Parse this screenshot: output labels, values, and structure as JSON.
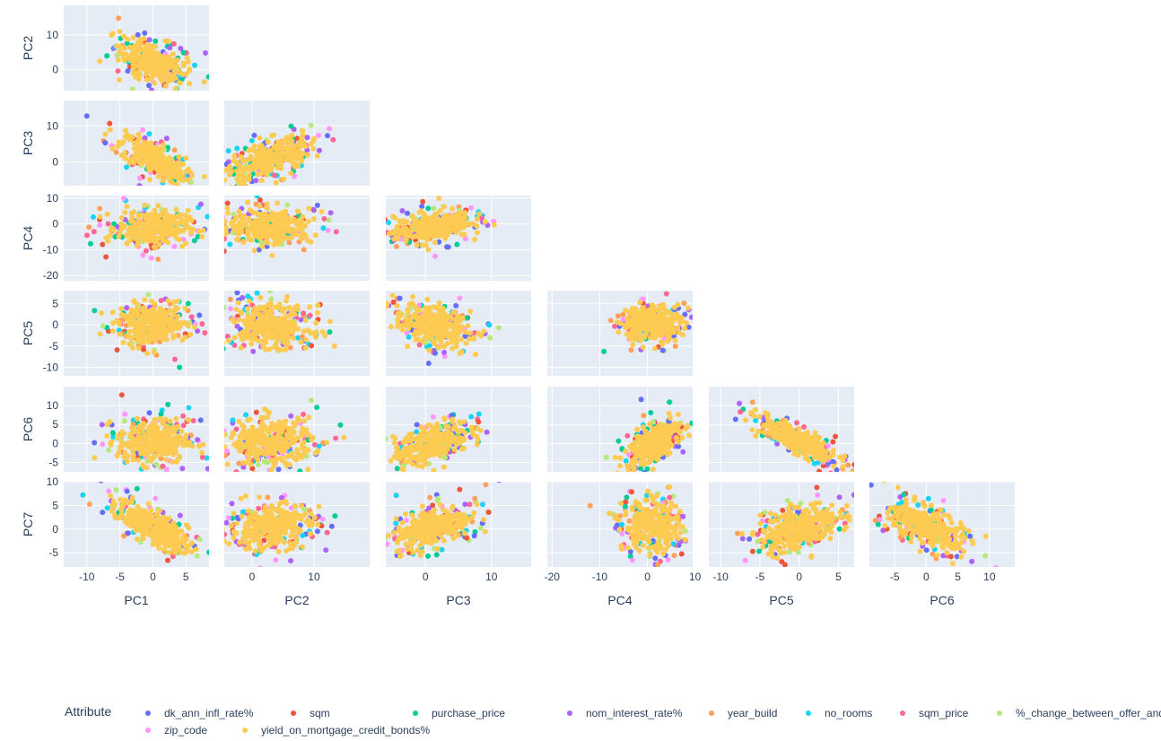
{
  "chart_data": {
    "type": "scatter",
    "subtype": "scatter-matrix-lower-triangle",
    "dimensions": [
      "PC1",
      "PC2",
      "PC3",
      "PC4",
      "PC5",
      "PC6",
      "PC7"
    ],
    "x_axis_labels": [
      "PC1",
      "PC2",
      "PC3",
      "PC4",
      "PC5",
      "PC6"
    ],
    "y_axis_labels": [
      "PC2",
      "PC3",
      "PC4",
      "PC5",
      "PC6",
      "PC7"
    ],
    "ranges": {
      "PC1": [
        -13.5,
        8.5
      ],
      "PC2": [
        -4.5,
        19
      ],
      "PC3": [
        -6,
        16
      ],
      "PC4": [
        -21,
        9.5
      ],
      "PC5": [
        -11.5,
        7
      ],
      "PC6": [
        -9,
        14
      ]
    },
    "y_ranges": {
      "PC2": [
        -6,
        18.5
      ],
      "PC3": [
        -6.5,
        17
      ],
      "PC4": [
        -22,
        11
      ],
      "PC5": [
        -12,
        8
      ],
      "PC6": [
        -7.5,
        15
      ],
      "PC7": [
        -8,
        10
      ]
    },
    "x_ticks": {
      "PC1": [
        -10,
        -5,
        0,
        5
      ],
      "PC2": [
        0,
        10
      ],
      "PC3": [
        0,
        10
      ],
      "PC4": [
        -20,
        -10,
        0,
        10
      ],
      "PC5": [
        -10,
        -5,
        0,
        5
      ],
      "PC6": [
        -5,
        0,
        5,
        10
      ]
    },
    "y_ticks": {
      "PC2": [
        0,
        10
      ],
      "PC3": [
        0,
        10
      ],
      "PC4": [
        -20,
        -10,
        0,
        10
      ],
      "PC5": [
        -10,
        -5,
        0,
        5
      ],
      "PC6": [
        -5,
        0,
        5,
        10
      ],
      "PC7": [
        -5,
        0,
        5,
        10
      ]
    },
    "legend_title": "Attribute",
    "legend_placement": "bottom",
    "series": [
      {
        "name": "dk_ann_infl_rate%",
        "color": "#636efa"
      },
      {
        "name": "sqm",
        "color": "#ef553b"
      },
      {
        "name": "purchase_price",
        "color": "#00cc96"
      },
      {
        "name": "nom_interest_rate%",
        "color": "#ab63fa"
      },
      {
        "name": "year_build",
        "color": "#ffa15a"
      },
      {
        "name": "no_rooms",
        "color": "#19d3f3"
      },
      {
        "name": "sqm_price",
        "color": "#ff6692"
      },
      {
        "name": "%_change_between_offer_and_purchase",
        "color": "#b6e880"
      },
      {
        "name": "zip_code",
        "color": "#ff97ff"
      },
      {
        "name": "yield_on_mortgage_credit_bonds%",
        "color": "#fecb52"
      }
    ],
    "panel_background": "#e5ecf6",
    "grid": true
  }
}
